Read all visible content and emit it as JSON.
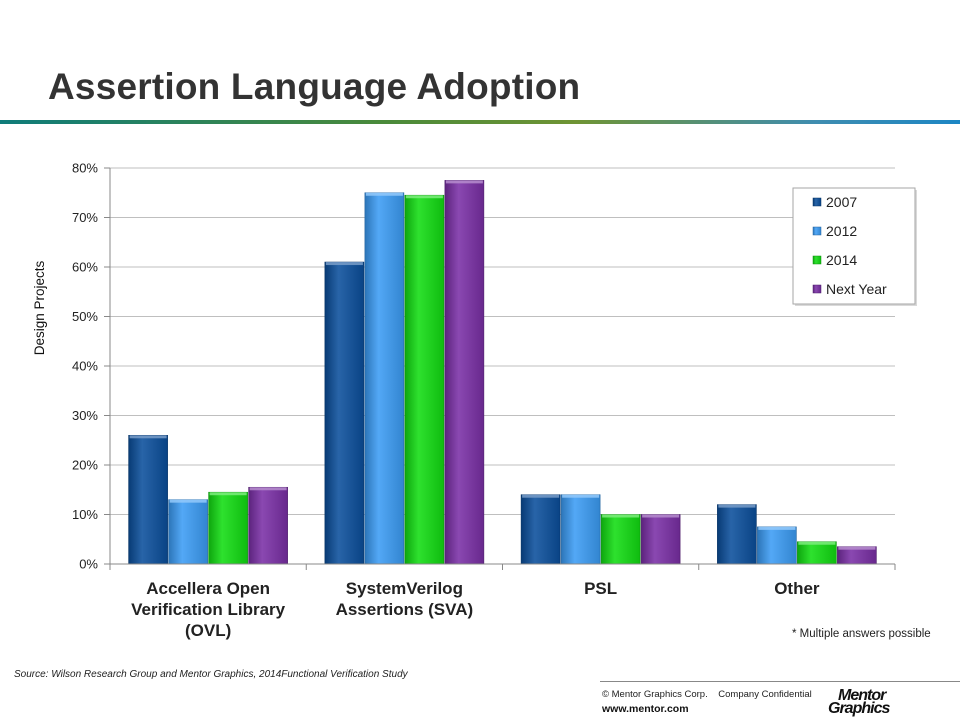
{
  "slide": {
    "title": "Assertion Language Adoption",
    "note": "* Multiple answers possible",
    "source": "Source:  Wilson Research Group and Mentor Graphics, 2014Functional Verification Study",
    "copyright": "© Mentor Graphics Corp.    Company Confidential",
    "website": "www.mentor.com",
    "logo_line1": "Mentor",
    "logo_line2": "Graphics"
  },
  "chart_data": {
    "type": "bar",
    "title": "",
    "xlabel": "",
    "ylabel": "Design Projects",
    "ylim": [
      0,
      80
    ],
    "yticks": [
      "0%",
      "10%",
      "20%",
      "30%",
      "40%",
      "50%",
      "60%",
      "70%",
      "80%"
    ],
    "grid": true,
    "legend_position": "top-right",
    "categories": [
      [
        "Accellera Open",
        "Verification Library",
        "(OVL)"
      ],
      [
        "SystemVerilog",
        "Assertions (SVA)"
      ],
      [
        "PSL"
      ],
      [
        "Other"
      ]
    ],
    "series": [
      {
        "name": "2007",
        "color": "#0b4f9c",
        "values": [
          26,
          61,
          14,
          12
        ]
      },
      {
        "name": "2012",
        "color": "#3b9cf5",
        "values": [
          13,
          75,
          14,
          7.5
        ]
      },
      {
        "name": "2014",
        "color": "#12dd12",
        "values": [
          14.5,
          74.5,
          10,
          4.5
        ]
      },
      {
        "name": "Next Year",
        "color": "#7a2fa6",
        "values": [
          15.5,
          77.5,
          10,
          3.5
        ]
      }
    ]
  }
}
